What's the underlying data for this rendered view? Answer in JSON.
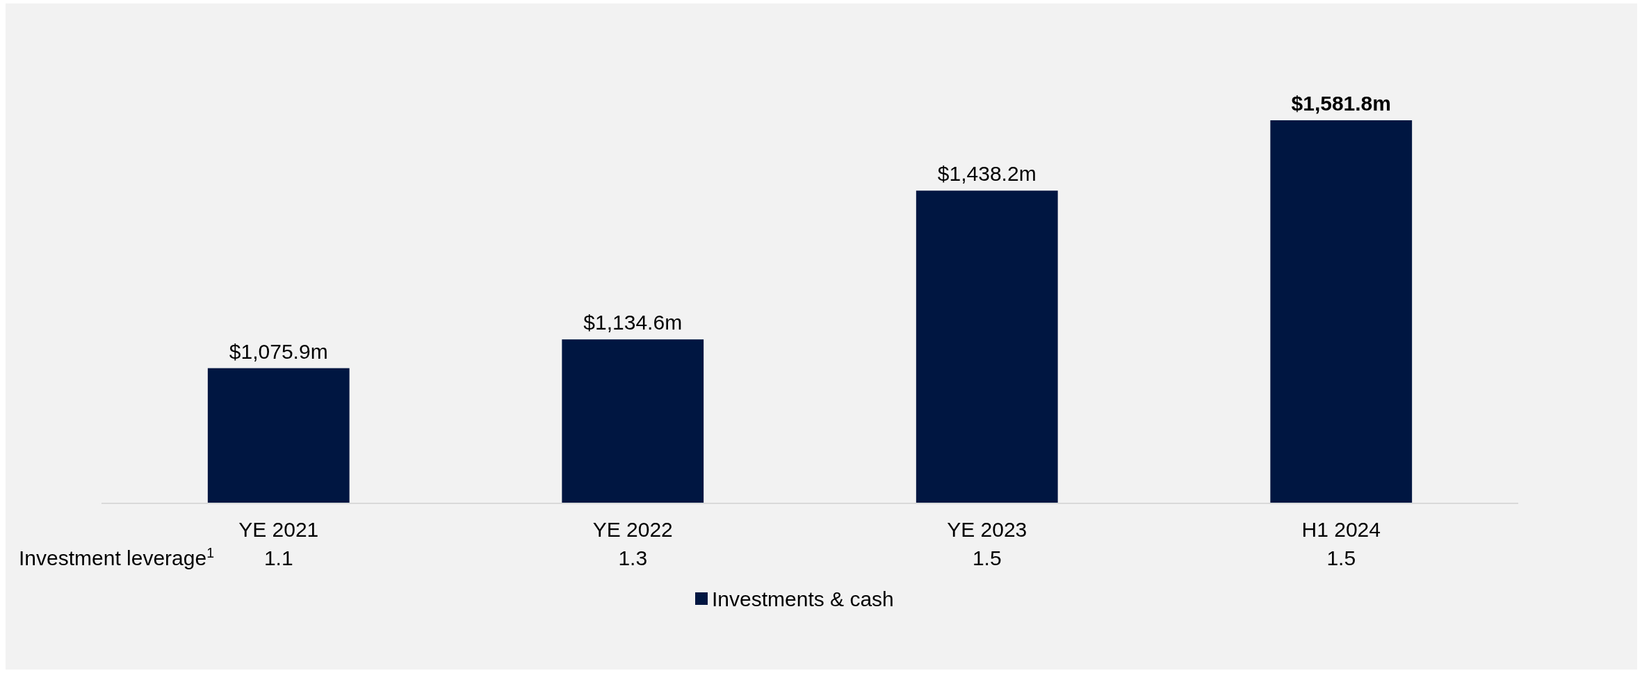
{
  "chart_data": {
    "type": "bar",
    "categories": [
      "YE 2021",
      "YE 2022",
      "YE 2023",
      "H1 2024"
    ],
    "series": [
      {
        "name": "Investments & cash",
        "color": "#001641",
        "values": [
          1075.9,
          1134.6,
          1438.2,
          1581.8
        ],
        "value_labels": [
          "$1,075.9m",
          "$1,134.6m",
          "$1,438.2m",
          "$1,581.8m"
        ]
      }
    ],
    "ylim": [
      800,
      1581.8
    ],
    "tick_labels": "x",
    "legend": "bottom",
    "annotations": [
      "Investment leverage$^{1}$",
      "1.1",
      "1.3",
      "1.5",
      "1.5"
    ]
  }
}
